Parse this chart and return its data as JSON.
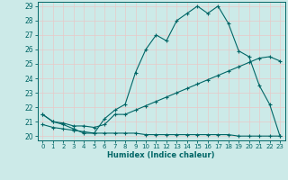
{
  "xlabel": "Humidex (Indice chaleur)",
  "bg_color": "#cceae8",
  "grid_color": "#dde8e8",
  "line_color": "#006666",
  "xlim": [
    -0.5,
    23.5
  ],
  "ylim": [
    19.7,
    29.3
  ],
  "yticks": [
    20,
    21,
    22,
    23,
    24,
    25,
    26,
    27,
    28,
    29
  ],
  "xticks": [
    0,
    1,
    2,
    3,
    4,
    5,
    6,
    7,
    8,
    9,
    10,
    11,
    12,
    13,
    14,
    15,
    16,
    17,
    18,
    19,
    20,
    21,
    22,
    23
  ],
  "line1_x": [
    0,
    1,
    2,
    3,
    4,
    5,
    6,
    7,
    8,
    9,
    10,
    11,
    12,
    13,
    14,
    15,
    16,
    17,
    18,
    19,
    20,
    21,
    22,
    23
  ],
  "line1_y": [
    21.5,
    21.0,
    20.8,
    20.5,
    20.2,
    20.2,
    21.2,
    21.8,
    22.2,
    24.4,
    26.0,
    27.0,
    26.6,
    28.0,
    28.5,
    29.0,
    28.5,
    29.0,
    27.8,
    25.9,
    25.5,
    23.5,
    22.2,
    20.0
  ],
  "line2_x": [
    0,
    1,
    2,
    3,
    4,
    5,
    6,
    7,
    8,
    9,
    10,
    11,
    12,
    13,
    14,
    15,
    16,
    17,
    18,
    19,
    20,
    21,
    22,
    23
  ],
  "line2_y": [
    21.5,
    21.0,
    20.9,
    20.7,
    20.7,
    20.6,
    20.8,
    21.5,
    21.5,
    21.8,
    22.1,
    22.4,
    22.7,
    23.0,
    23.3,
    23.6,
    23.9,
    24.2,
    24.5,
    24.8,
    25.1,
    25.4,
    25.5,
    25.2
  ],
  "line3_x": [
    0,
    1,
    2,
    3,
    4,
    5,
    6,
    7,
    8,
    9,
    10,
    11,
    12,
    13,
    14,
    15,
    16,
    17,
    18,
    19,
    20,
    21,
    22,
    23
  ],
  "line3_y": [
    20.8,
    20.6,
    20.5,
    20.4,
    20.3,
    20.2,
    20.2,
    20.2,
    20.2,
    20.2,
    20.1,
    20.1,
    20.1,
    20.1,
    20.1,
    20.1,
    20.1,
    20.1,
    20.1,
    20.0,
    20.0,
    20.0,
    20.0,
    20.0
  ]
}
